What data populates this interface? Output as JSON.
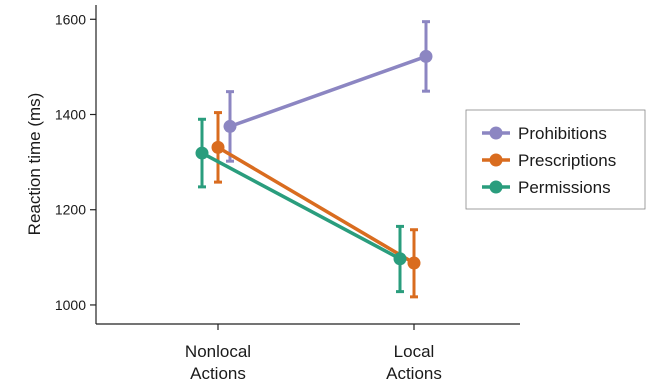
{
  "chart_data": {
    "type": "line",
    "ylabel": "Reaction time (ms)",
    "ylim": [
      960,
      1630
    ],
    "yticks": [
      1000,
      1200,
      1400,
      1600
    ],
    "categories": [
      [
        "Nonlocal",
        "Actions"
      ],
      [
        "Local",
        "Actions"
      ]
    ],
    "legend_position": "right",
    "grid": false,
    "series": [
      {
        "name": "Prohibitions",
        "color": "#8c86c2",
        "values": [
          1375,
          1522
        ],
        "error_low": [
          1302,
          1449
        ],
        "error_high": [
          1448,
          1595
        ]
      },
      {
        "name": "Prescriptions",
        "color": "#d96c1f",
        "values": [
          1331,
          1088
        ],
        "error_low": [
          1258,
          1017
        ],
        "error_high": [
          1404,
          1158
        ]
      },
      {
        "name": "Permissions",
        "color": "#2a9d7d",
        "values": [
          1319,
          1097
        ],
        "error_low": [
          1248,
          1028
        ],
        "error_high": [
          1390,
          1165
        ]
      }
    ]
  }
}
